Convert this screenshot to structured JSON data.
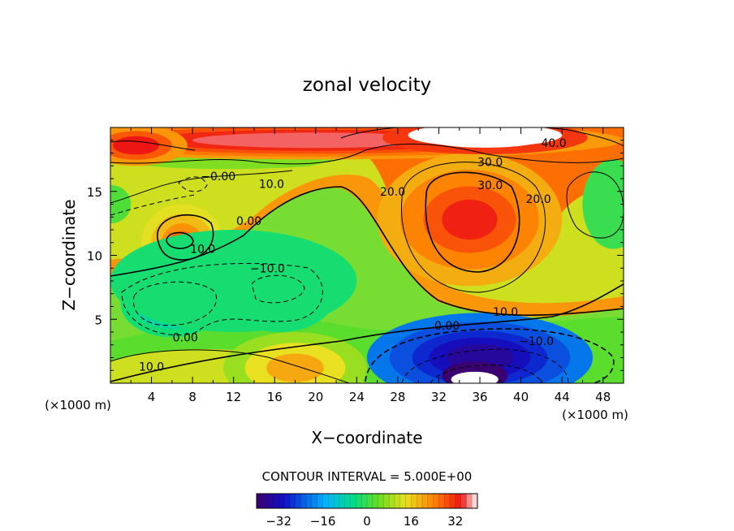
{
  "chart_data": {
    "type": "heatmap",
    "title": "zonal velocity",
    "xlabel": "X−coordinate",
    "ylabel": "Z−coordinate",
    "x_unit": "(×1000 m)",
    "z_unit": "(×1000 m)",
    "xlim": [
      0,
      50
    ],
    "ylim": [
      0,
      20
    ],
    "x_ticks": [
      4,
      8,
      12,
      16,
      20,
      24,
      28,
      32,
      36,
      40,
      44,
      48
    ],
    "y_ticks": [
      5,
      10,
      15
    ],
    "contour_interval_label": "CONTOUR INTERVAL = 5.000E+00",
    "colorbar": {
      "range": [
        -40,
        40
      ],
      "ticks": [
        -32,
        -16,
        0,
        16,
        32
      ]
    },
    "contour_labels": [
      {
        "text": "40.0",
        "x": 43.2,
        "z": 18.8
      },
      {
        "text": "30.0",
        "x": 37.0,
        "z": 17.3
      },
      {
        "text": "30.0",
        "x": 37.0,
        "z": 15.5
      },
      {
        "text": "20.0",
        "x": 27.5,
        "z": 15.0
      },
      {
        "text": "20.0",
        "x": 41.7,
        "z": 14.4
      },
      {
        "text": "−0.00",
        "x": 10.5,
        "z": 16.2
      },
      {
        "text": "10.0",
        "x": 15.7,
        "z": 15.6
      },
      {
        "text": "0.00",
        "x": 13.5,
        "z": 12.7
      },
      {
        "text": "10.0",
        "x": 9.0,
        "z": 10.5
      },
      {
        "text": "−10.0",
        "x": 15.3,
        "z": 9.0
      },
      {
        "text": "10.0",
        "x": 38.5,
        "z": 5.6
      },
      {
        "text": "0.00",
        "x": 32.8,
        "z": 4.5
      },
      {
        "text": "−10.0",
        "x": 41.5,
        "z": 3.3
      },
      {
        "text": "0.00",
        "x": 7.3,
        "z": 3.6
      },
      {
        "text": "10.0",
        "x": 4.0,
        "z": 1.3
      }
    ],
    "regions": [
      {
        "value": 40,
        "x": 36,
        "z": 18.8
      },
      {
        "value": 33,
        "x": 35,
        "z": 12.5
      },
      {
        "value": 35,
        "x": 2,
        "z": 18.5
      },
      {
        "value": 28,
        "x": 7,
        "z": 11
      },
      {
        "value": -14,
        "x": 6,
        "z": 6
      },
      {
        "value": -10,
        "x": 16,
        "z": 7
      },
      {
        "value": -35,
        "x": 35,
        "z": 1.5
      },
      {
        "value": 20,
        "x": 18,
        "z": 1.3
      },
      {
        "value": 0,
        "x": 49,
        "z": 14
      }
    ]
  }
}
